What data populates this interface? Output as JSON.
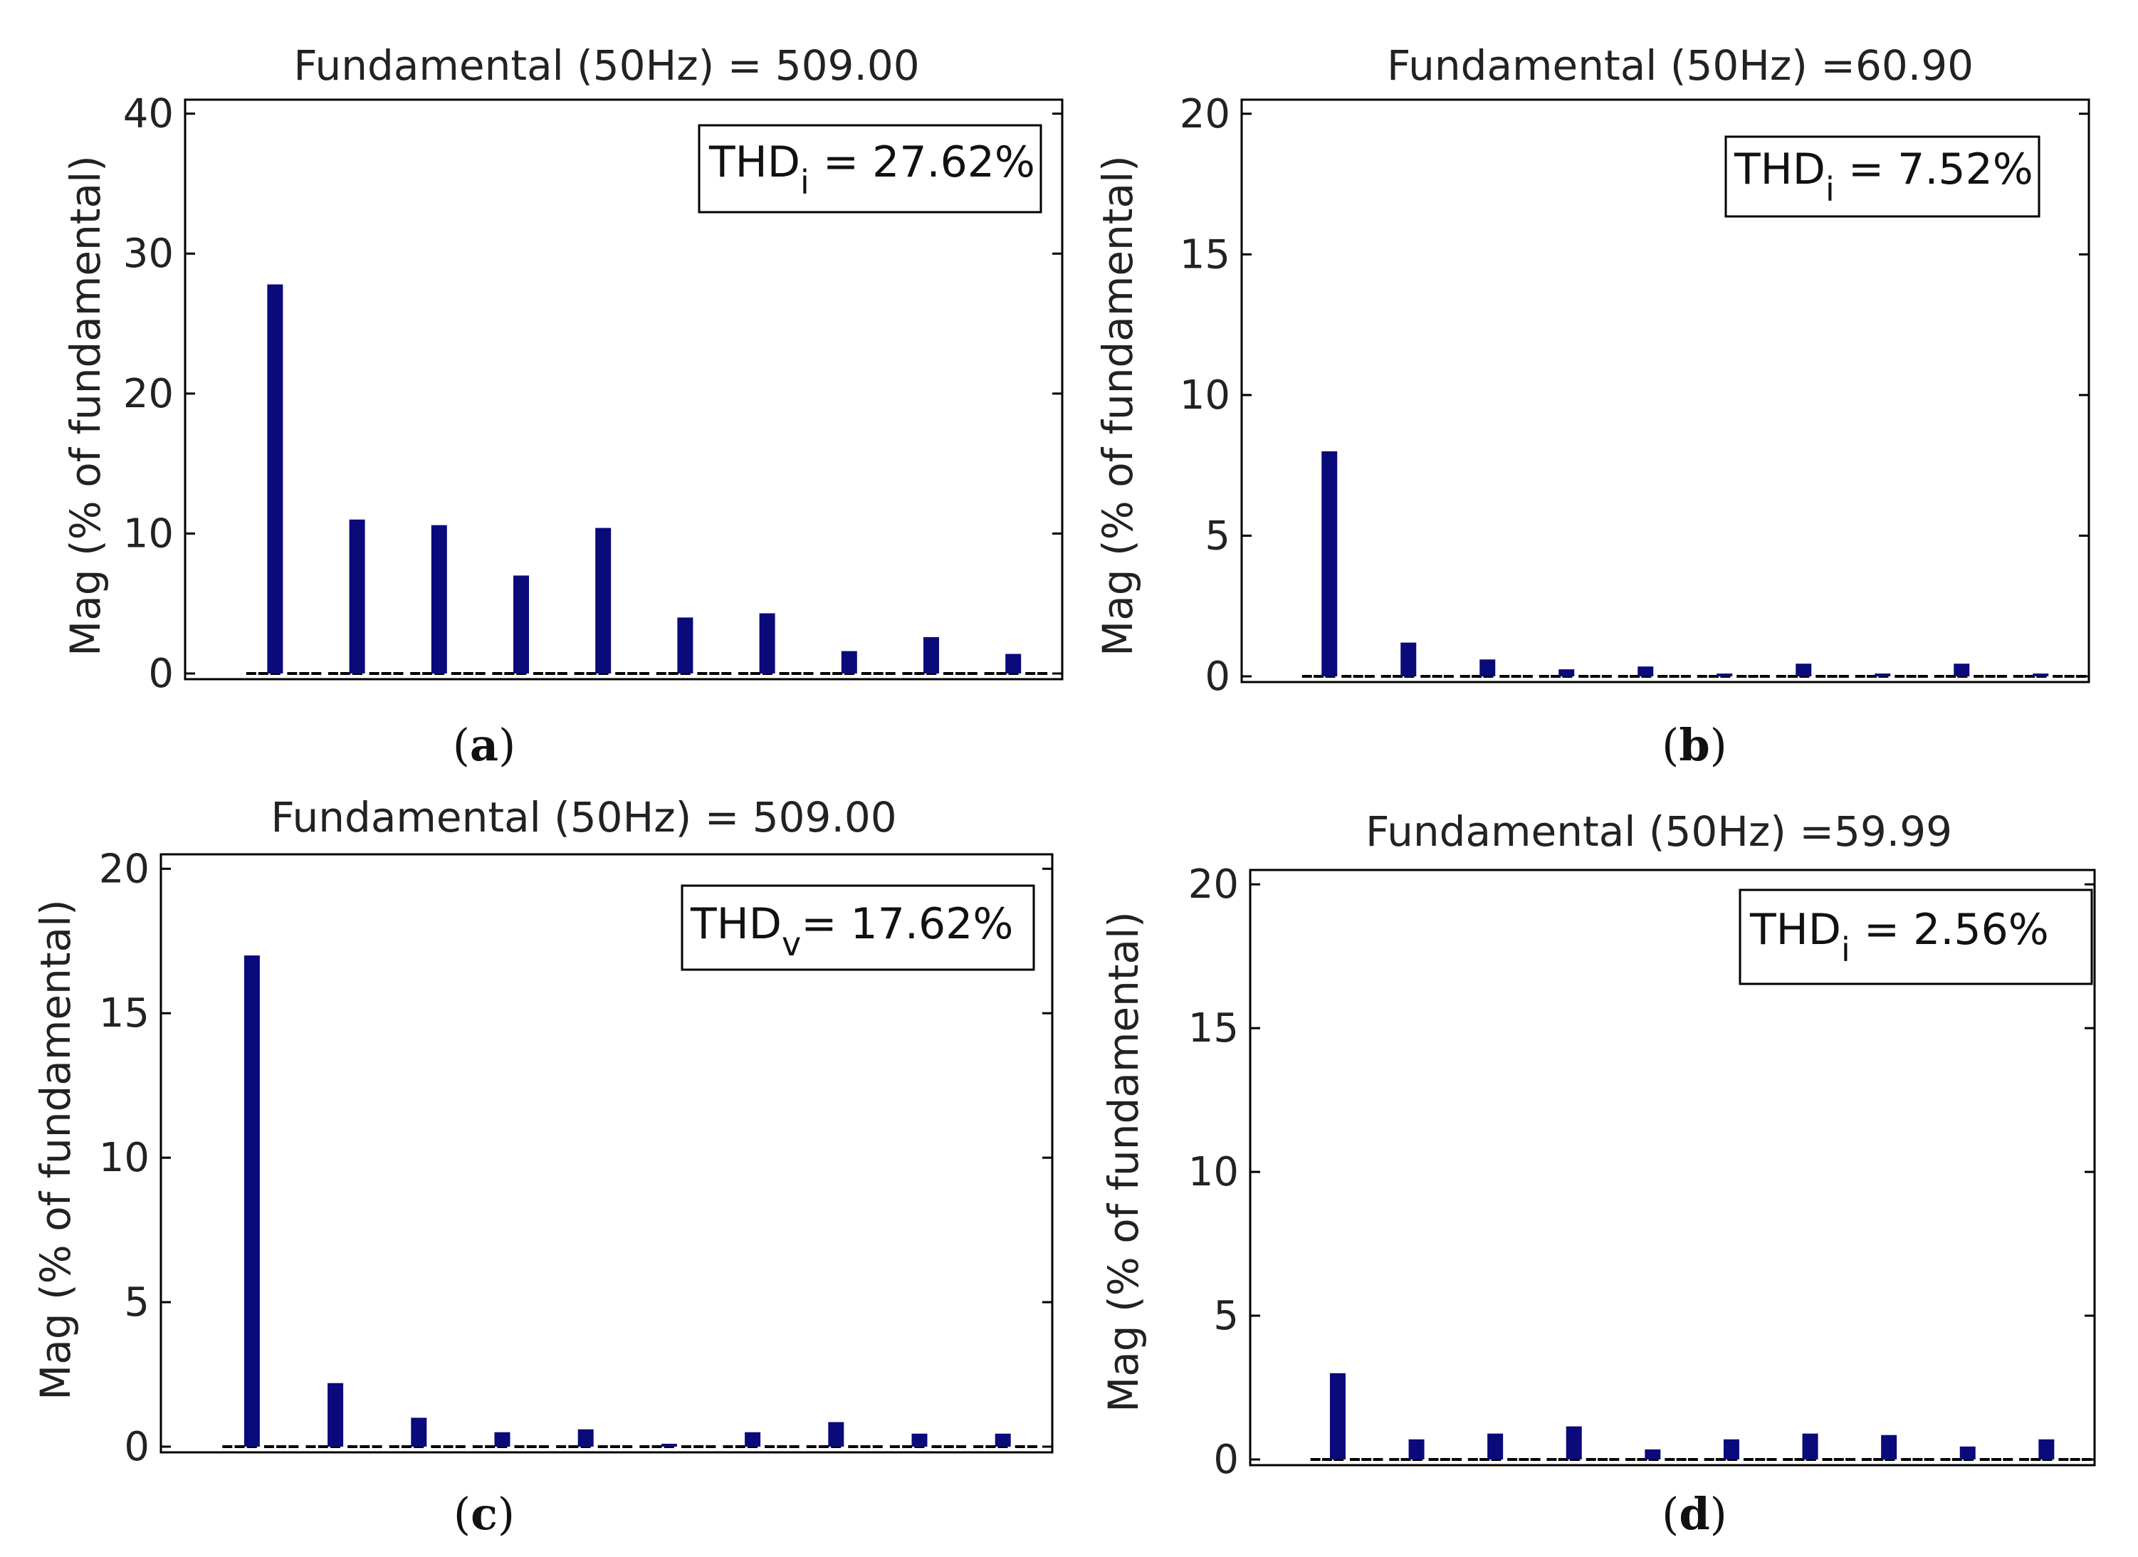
{
  "colors": {
    "bar": "#0a0a7a",
    "axis": "#000000",
    "text": "#222222"
  },
  "chart_data": [
    {
      "type": "bar",
      "panel": "a",
      "caption": "a",
      "title": "Fundamental (50Hz) = 509.00",
      "ylabel": "Mag (% of fundamental)",
      "ylim": [
        0,
        41
      ],
      "yticks": [
        0,
        10,
        20,
        30,
        40
      ],
      "ytick_labels": [
        "0",
        "10",
        "20",
        "30",
        "40"
      ],
      "harmonic_values": [
        0,
        27.8,
        0,
        11.0,
        0,
        10.6,
        0,
        7.0,
        0,
        10.4,
        0,
        4.0,
        0,
        4.3,
        0,
        1.6,
        0,
        2.6,
        0,
        1.4
      ],
      "thd": {
        "main": "THD",
        "sub": "i",
        "rest": " = 27.62%"
      }
    },
    {
      "type": "bar",
      "panel": "b",
      "caption": "b",
      "title": "Fundamental (50Hz) =60.90",
      "ylabel": "Mag (% of fundamental)",
      "ylim": [
        0,
        20.5
      ],
      "yticks": [
        0,
        5,
        10,
        15,
        20
      ],
      "ytick_labels": [
        "0",
        "5",
        "10",
        "15",
        "20"
      ],
      "harmonic_values": [
        0,
        8.0,
        0,
        1.2,
        0,
        0.6,
        0,
        0.25,
        0,
        0.35,
        0,
        0.1,
        0,
        0.45,
        0,
        0.1,
        0,
        0.45,
        0,
        0.1
      ],
      "thd": {
        "main": "THD",
        "sub": "i",
        "rest": " = 7.52%"
      }
    },
    {
      "type": "bar",
      "panel": "c",
      "caption": "c",
      "title": "Fundamental (50Hz) = 509.00",
      "ylabel": "Mag (% of fundamental)",
      "ylim": [
        0,
        20.5
      ],
      "yticks": [
        0,
        5,
        10,
        15,
        20
      ],
      "ytick_labels": [
        "0",
        "5",
        "10",
        "15",
        "20"
      ],
      "harmonic_values": [
        0,
        17.0,
        0,
        2.2,
        0,
        1.0,
        0,
        0.5,
        0,
        0.6,
        0,
        0.1,
        0,
        0.5,
        0,
        0.85,
        0,
        0.45,
        0,
        0.45
      ],
      "thd": {
        "main": "THD",
        "sub": "v",
        "rest": "= 17.62%"
      }
    },
    {
      "type": "bar",
      "panel": "d",
      "caption": "d",
      "title": "Fundamental (50Hz) =59.99",
      "ylabel": "Mag (% of fundamental)",
      "ylim": [
        0,
        20.5
      ],
      "yticks": [
        0,
        5,
        10,
        15,
        20
      ],
      "ytick_labels": [
        "0",
        "5",
        "10",
        "15",
        "20"
      ],
      "harmonic_values": [
        0,
        3.0,
        0,
        0.7,
        0,
        0.9,
        0,
        1.15,
        0,
        0.35,
        0,
        0.7,
        0,
        0.9,
        0,
        0.85,
        0,
        0.45,
        0,
        0.7
      ],
      "thd": {
        "main": "THD",
        "sub": "i",
        "rest": " = 2.56%"
      }
    }
  ]
}
